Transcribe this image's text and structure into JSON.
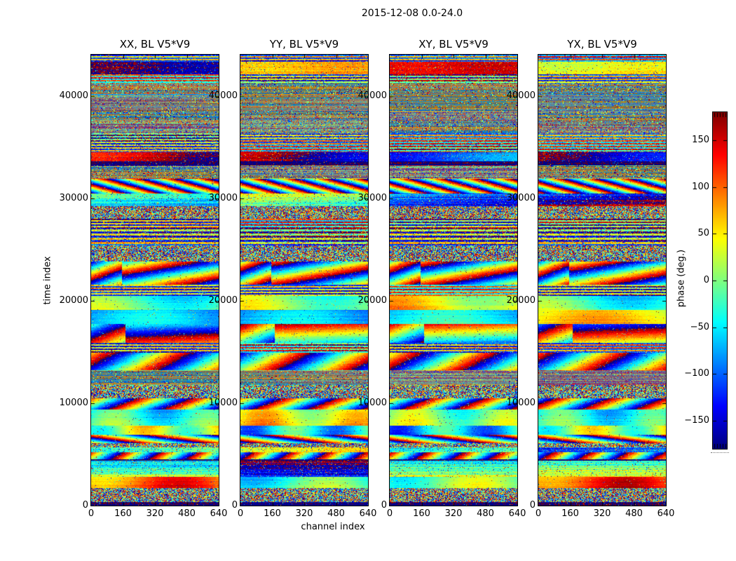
{
  "figure": {
    "title": "2015-12-08 0.0-24.0"
  },
  "chart_data": {
    "type": "heatmap",
    "title": "2015-12-08 0.0-24.0",
    "panels": [
      {
        "label": "XX, BL V5*V9",
        "pol": "XX",
        "baseline": "V5*V9"
      },
      {
        "label": "YY, BL V5*V9",
        "pol": "YY",
        "baseline": "V5*V9"
      },
      {
        "label": "XY, BL V5*V9",
        "pol": "XY",
        "baseline": "V5*V9"
      },
      {
        "label": "YX, BL V5*V9",
        "pol": "YX",
        "baseline": "V5*V9"
      }
    ],
    "xlabel": "channel index",
    "ylabel": "time index",
    "x_range": [
      0,
      640
    ],
    "y_range": [
      0,
      44000
    ],
    "x_ticks": [
      0,
      160,
      320,
      480,
      640
    ],
    "x_tick_labels": [
      "0",
      "160",
      "320",
      "480",
      "640"
    ],
    "y_ticks": [
      0,
      10000,
      20000,
      30000,
      40000
    ],
    "y_tick_labels": [
      "0",
      "10000",
      "20000",
      "30000",
      "40000"
    ],
    "grid": false,
    "colorbar": {
      "label": "phase (deg.)",
      "colormap": "jet",
      "range": [
        -180,
        180
      ],
      "ticks": [
        150,
        100,
        50,
        0,
        -50,
        -100,
        -150
      ],
      "tick_labels": [
        "150",
        "100",
        "50",
        "0",
        "−50",
        "−100",
        "−150"
      ]
    },
    "colors": {
      "jet_top": "#7f0000",
      "jet_red": "#ff0000",
      "jet_yellow": "#ffff00",
      "jet_mid_green": "#7fff7f",
      "jet_cyan": "#00ffff",
      "jet_blue": "#0000ff",
      "jet_bottom": "#00007f",
      "text": "#000000",
      "background": "#ffffff"
    }
  }
}
